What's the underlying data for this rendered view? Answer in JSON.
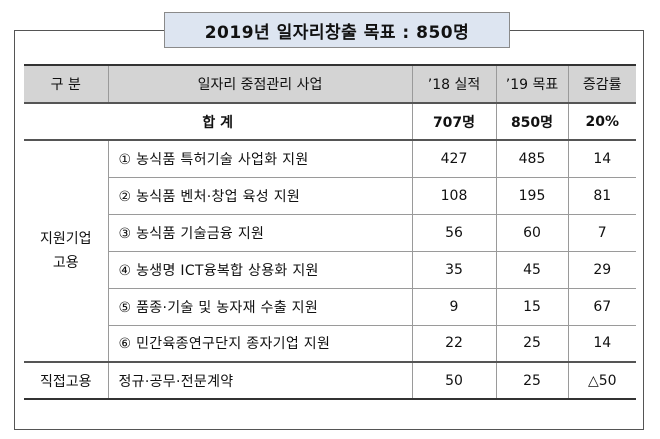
{
  "title": "2019년 일자리창출 목표 : 850명",
  "headers": {
    "category": "구 분",
    "project": "일자리 중점관리 사업",
    "actual_2018": "’18 실적",
    "target_2019": "’19 목표",
    "change": "증감률"
  },
  "total": {
    "label": "합 계",
    "actual_2018": "707명",
    "target_2019": "850명",
    "change": "20%"
  },
  "groups": [
    {
      "category_line1": "지원기업",
      "category_line2": "고용",
      "rows": [
        {
          "name": "① 농식품 특허기술 사업화 지원",
          "actual_2018": "427",
          "target_2019": "485",
          "change": "14"
        },
        {
          "name": "② 농식품 벤처·창업 육성 지원",
          "actual_2018": "108",
          "target_2019": "195",
          "change": "81"
        },
        {
          "name": "③ 농식품 기술금융 지원",
          "actual_2018": "56",
          "target_2019": "60",
          "change": "7"
        },
        {
          "name": "④ 농생명 ICT융복합 상용화 지원",
          "actual_2018": "35",
          "target_2019": "45",
          "change": "29"
        },
        {
          "name": "⑤ 품종·기술 및 농자재 수출 지원",
          "actual_2018": "9",
          "target_2019": "15",
          "change": "67"
        },
        {
          "name": "⑥ 민간육종연구단지 종자기업 지원",
          "actual_2018": "22",
          "target_2019": "25",
          "change": "14"
        }
      ]
    },
    {
      "category_line1": "직접고용",
      "rows": [
        {
          "name": "정규·공무·전문계약",
          "actual_2018": "50",
          "target_2019": "25",
          "change": "△50"
        }
      ]
    }
  ]
}
